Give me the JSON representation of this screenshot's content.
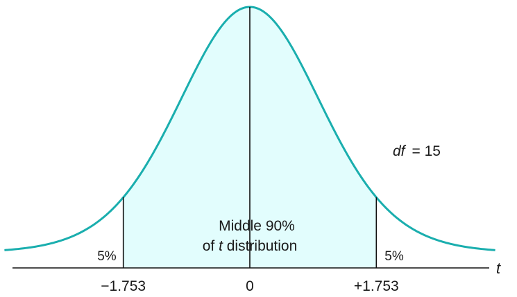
{
  "chart_data": {
    "type": "area",
    "distribution": "t",
    "df_label": "df",
    "df_equals": "= 15",
    "df": 15,
    "x_axis_variable": "t",
    "xlim": [
      -3.4,
      3.4
    ],
    "critical_values": [
      -1.753,
      1.753
    ],
    "tick_labels": [
      "−1.753",
      "0",
      "+1.753"
    ],
    "tick_values": [
      -1.753,
      0,
      1.753
    ],
    "tail_percent_left": "5%",
    "tail_percent_right": "5%",
    "middle_label_line1": "Middle 90%",
    "middle_label_line2_pre": "of ",
    "middle_label_line2_var": "t",
    "middle_label_line2_post": " distribution",
    "colors": {
      "curve": "#1aaeae",
      "middle_fill": "#e2fdfd",
      "lines": "#111111"
    }
  }
}
